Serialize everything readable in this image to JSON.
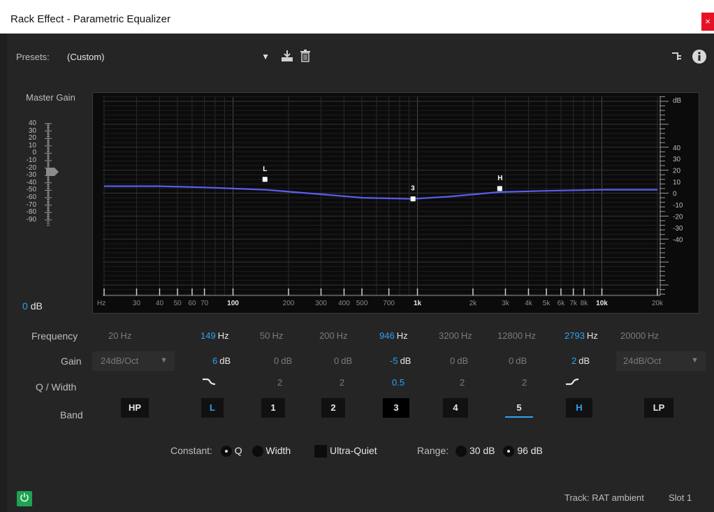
{
  "window": {
    "title": "Rack Effect - Parametric Equalizer",
    "close_glyph": "×"
  },
  "presets": {
    "label": "Presets:",
    "value": "(Custom)"
  },
  "toolbar": {
    "save_icon": "download-icon",
    "delete_icon": "trash-icon",
    "routing_icon": "routing-icon",
    "info_icon": "info-icon"
  },
  "master_gain": {
    "label": "Master Gain",
    "value": "0",
    "unit": "dB",
    "ticks": [
      "40",
      "30",
      "20",
      "10",
      "0",
      "-10",
      "-20",
      "-30",
      "-40",
      "-50",
      "-60",
      "-70",
      "-80",
      "-90"
    ]
  },
  "graph": {
    "x_ticks": [
      "Hz",
      "30",
      "40",
      "50",
      "60",
      "70",
      "100",
      "200",
      "300",
      "400",
      "500",
      "700",
      "1k",
      "2k",
      "3k",
      "4k",
      "5k",
      "6k",
      "7k",
      "8k",
      "10k",
      "20k"
    ],
    "y_unit": "dB",
    "y_ticks": [
      "40",
      "30",
      "20",
      "10",
      "0",
      "-10",
      "-20",
      "-30",
      "-40"
    ],
    "markers": [
      "L",
      "3",
      "H"
    ]
  },
  "chart_data": {
    "type": "line",
    "series": [
      {
        "values_hz": [
          20,
          40,
          70,
          100,
          149,
          300,
          500,
          946,
          1500,
          2793,
          5000,
          10000,
          20000
        ],
        "values_db": [
          6,
          6,
          5,
          4,
          3,
          -1,
          -4,
          -5,
          -3,
          1,
          2,
          3,
          3
        ]
      }
    ],
    "xscale": "log",
    "xlim": [
      20,
      20000
    ],
    "ylim": [
      -40,
      40
    ],
    "points": [
      {
        "label": "L",
        "hz": 149,
        "db": 6
      },
      {
        "label": "3",
        "hz": 946,
        "db": -5
      },
      {
        "label": "H",
        "hz": 2793,
        "db": 2
      }
    ]
  },
  "rows": {
    "frequency_label": "Frequency",
    "gain_label": "Gain",
    "q_label": "Q / Width",
    "band_label": "Band"
  },
  "freq": [
    {
      "num": "20",
      "unit": "Hz",
      "active": false
    },
    {
      "num": "149",
      "unit": "Hz",
      "active": true
    },
    {
      "num": "50",
      "unit": "Hz",
      "active": false
    },
    {
      "num": "200",
      "unit": "Hz",
      "active": false
    },
    {
      "num": "946",
      "unit": "Hz",
      "active": true
    },
    {
      "num": "3200",
      "unit": "Hz",
      "active": false
    },
    {
      "num": "12800",
      "unit": "Hz",
      "active": false
    },
    {
      "num": "2793",
      "unit": "Hz",
      "active": true
    },
    {
      "num": "20000",
      "unit": "Hz",
      "active": false
    }
  ],
  "gain": {
    "hp_slope": "24dB/Oct",
    "lp_slope": "24dB/Oct",
    "values": [
      {
        "num": "6",
        "unit": "dB",
        "active": true
      },
      {
        "num": "0",
        "unit": "dB",
        "active": false
      },
      {
        "num": "0",
        "unit": "dB",
        "active": false
      },
      {
        "num": "-5",
        "unit": "dB",
        "active": true
      },
      {
        "num": "0",
        "unit": "dB",
        "active": false
      },
      {
        "num": "0",
        "unit": "dB",
        "active": false
      },
      {
        "num": "2",
        "unit": "dB",
        "active": true
      }
    ]
  },
  "q": [
    "2",
    "2",
    "0.5",
    "2",
    "2"
  ],
  "bands": [
    "HP",
    "L",
    "1",
    "2",
    "3",
    "4",
    "5",
    "H",
    "LP"
  ],
  "constant": {
    "label": "Constant:",
    "q": "Q",
    "width": "Width",
    "selected": "Q"
  },
  "ultra_quiet": {
    "label": "Ultra-Quiet",
    "checked": false
  },
  "range": {
    "label": "Range:",
    "opt1": "30 dB",
    "opt2": "96 dB",
    "selected": "96 dB"
  },
  "status": {
    "track": "Track: RAT ambient",
    "slot": "Slot 1"
  },
  "colors": {
    "curve": "#5a5ef0",
    "accent": "#2ea3f2",
    "power": "#1fa254"
  }
}
